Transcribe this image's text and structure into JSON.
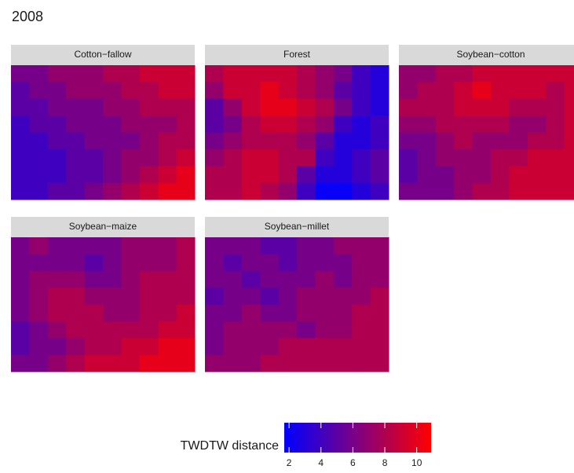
{
  "chart_data": {
    "type": "heatmap",
    "title": "2008",
    "low_color": "#0000ff",
    "high_color": "#ff0000",
    "panels": [
      {
        "name": "Cotton−fallow",
        "values": [
          [
            6,
            6,
            7,
            7,
            7,
            8,
            8,
            9,
            9,
            9
          ],
          [
            5,
            6,
            6,
            7,
            7,
            7,
            8,
            8,
            9,
            9
          ],
          [
            5,
            5,
            6,
            6,
            6,
            7,
            7,
            8,
            8,
            8
          ],
          [
            4,
            5,
            5,
            6,
            6,
            6,
            7,
            7,
            7,
            8
          ],
          [
            4,
            4,
            5,
            5,
            6,
            6,
            6,
            7,
            8,
            8
          ],
          [
            4,
            4,
            4,
            5,
            5,
            6,
            7,
            7,
            8,
            9
          ],
          [
            4,
            4,
            4,
            5,
            5,
            6,
            7,
            8,
            9,
            10
          ],
          [
            4,
            4,
            5,
            5,
            6,
            7,
            8,
            9,
            10,
            10
          ]
        ]
      },
      {
        "name": "Forest",
        "values": [
          [
            8,
            9,
            9,
            9,
            9,
            8,
            7,
            6,
            4,
            3
          ],
          [
            7,
            9,
            9,
            10,
            9,
            8,
            7,
            5,
            4,
            3
          ],
          [
            5,
            7,
            9,
            10,
            10,
            9,
            8,
            6,
            4,
            3
          ],
          [
            5,
            6,
            8,
            9,
            9,
            8,
            7,
            4,
            3,
            4
          ],
          [
            6,
            7,
            8,
            8,
            8,
            7,
            5,
            3,
            3,
            4
          ],
          [
            7,
            8,
            9,
            9,
            8,
            8,
            4,
            3,
            4,
            5
          ],
          [
            8,
            8,
            9,
            9,
            8,
            5,
            3,
            3,
            4,
            5
          ],
          [
            8,
            8,
            9,
            8,
            7,
            4,
            2,
            2,
            3,
            4
          ]
        ]
      },
      {
        "name": "Soybean−cotton",
        "values": [
          [
            7,
            7,
            8,
            8,
            9,
            9,
            9,
            9,
            9,
            9
          ],
          [
            7,
            8,
            8,
            9,
            10,
            9,
            9,
            9,
            8,
            9
          ],
          [
            8,
            8,
            8,
            9,
            9,
            9,
            8,
            8,
            8,
            9
          ],
          [
            7,
            7,
            8,
            8,
            8,
            8,
            7,
            7,
            8,
            9
          ],
          [
            6,
            6,
            7,
            8,
            7,
            7,
            7,
            8,
            8,
            9
          ],
          [
            5,
            6,
            7,
            7,
            7,
            8,
            8,
            9,
            9,
            9
          ],
          [
            5,
            6,
            6,
            7,
            7,
            8,
            9,
            9,
            9,
            9
          ],
          [
            6,
            6,
            6,
            7,
            8,
            8,
            9,
            9,
            9,
            9
          ]
        ]
      },
      {
        "name": "Soybean−maize",
        "values": [
          [
            6,
            7,
            6,
            6,
            6,
            6,
            7,
            7,
            7,
            8
          ],
          [
            6,
            6,
            6,
            6,
            5,
            6,
            7,
            7,
            7,
            8
          ],
          [
            6,
            7,
            7,
            7,
            6,
            6,
            7,
            8,
            8,
            8
          ],
          [
            6,
            7,
            8,
            8,
            7,
            7,
            7,
            8,
            8,
            8
          ],
          [
            6,
            7,
            8,
            8,
            8,
            7,
            7,
            8,
            8,
            9
          ],
          [
            5,
            6,
            7,
            8,
            8,
            8,
            8,
            8,
            9,
            9
          ],
          [
            5,
            6,
            6,
            7,
            8,
            8,
            9,
            9,
            10,
            10
          ],
          [
            6,
            6,
            7,
            8,
            9,
            9,
            9,
            10,
            10,
            10
          ]
        ]
      },
      {
        "name": "Soybean−millet",
        "values": [
          [
            6,
            6,
            6,
            5,
            5,
            6,
            6,
            7,
            7,
            7
          ],
          [
            6,
            5,
            6,
            6,
            5,
            6,
            6,
            6,
            7,
            7
          ],
          [
            6,
            6,
            5,
            6,
            6,
            6,
            7,
            6,
            7,
            7
          ],
          [
            5,
            6,
            6,
            5,
            6,
            7,
            7,
            7,
            7,
            8
          ],
          [
            6,
            6,
            7,
            6,
            6,
            7,
            7,
            7,
            8,
            8
          ],
          [
            6,
            7,
            7,
            7,
            7,
            6,
            7,
            7,
            8,
            8
          ],
          [
            6,
            7,
            7,
            7,
            8,
            8,
            8,
            8,
            8,
            8
          ],
          [
            7,
            7,
            7,
            8,
            8,
            8,
            8,
            8,
            8,
            8
          ]
        ]
      }
    ],
    "legend": {
      "title": "TWDTW distance",
      "lim": [
        1.7,
        10.9
      ],
      "ticks": [
        2,
        4,
        6,
        8,
        10
      ]
    }
  }
}
